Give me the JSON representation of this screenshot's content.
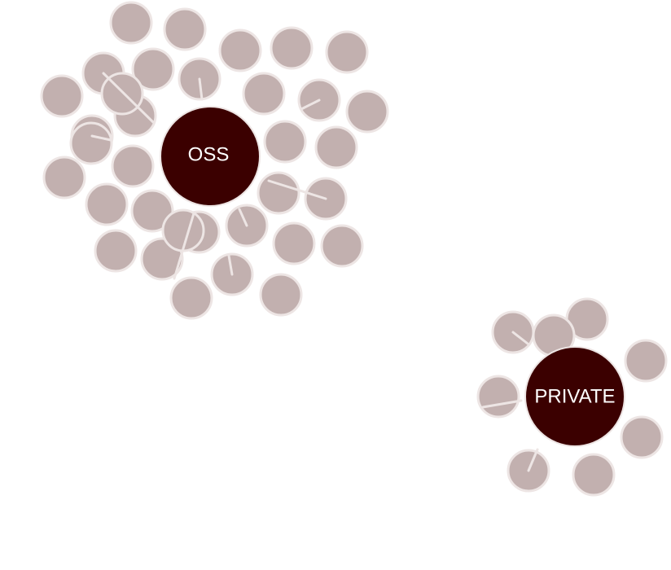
{
  "colors": {
    "hub_fill": "#3b0000",
    "hub_label": "#ffffff",
    "node_fill": "#c2b0af",
    "node_stroke": "#ede5e4",
    "link": "#ede5e4"
  },
  "clusters": [
    {
      "id": "oss",
      "label": "OSS",
      "member_count": 34
    },
    {
      "id": "private",
      "label": "PRIVATE",
      "member_count": 8
    }
  ]
}
